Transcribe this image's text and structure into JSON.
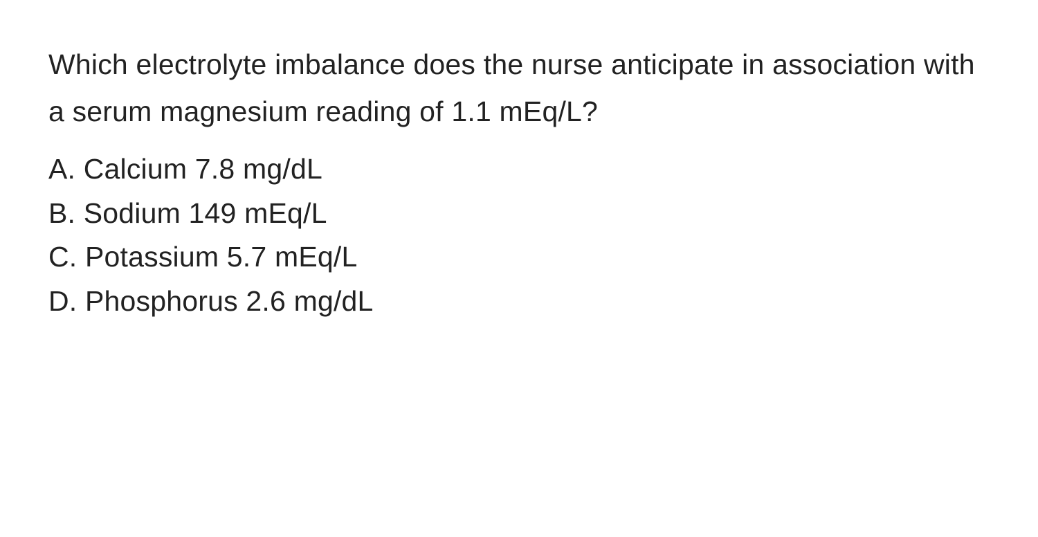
{
  "question": {
    "text": "Which electrolyte imbalance does the nurse anticipate in association with a serum magnesium reading of 1.1 mEq/L?",
    "options": [
      {
        "letter": "A.",
        "text": "Calcium 7.8 mg/dL"
      },
      {
        "letter": "B.",
        "text": "Sodium 149 mEq/L"
      },
      {
        "letter": "C.",
        "text": "Potassium 5.7 mEq/L"
      },
      {
        "letter": "D.",
        "text": "Phosphorus 2.6 mg/dL"
      }
    ]
  },
  "styling": {
    "background_color": "#ffffff",
    "text_color": "#222222",
    "font_size_pt": 31,
    "line_height": 1.65,
    "font_weight": 400
  }
}
